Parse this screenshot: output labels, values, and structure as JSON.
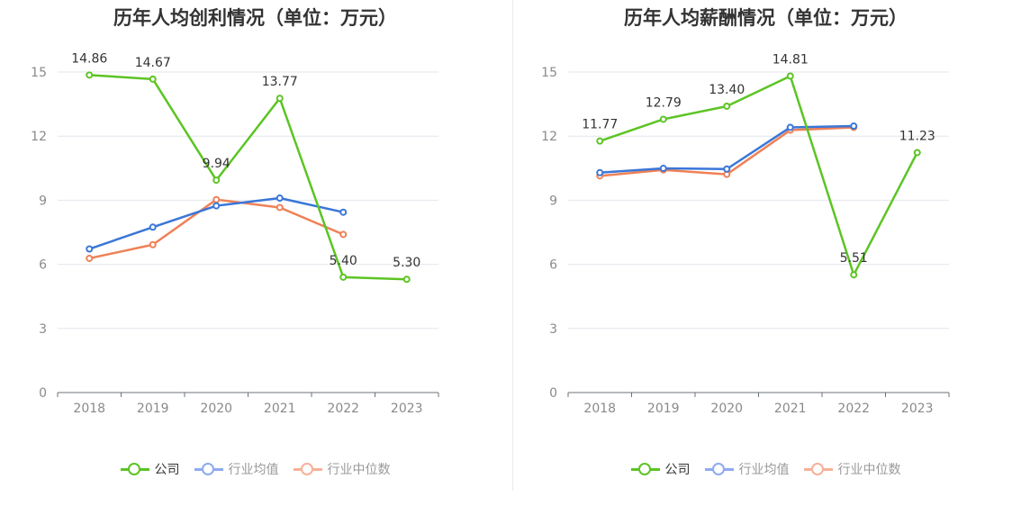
{
  "colors": {
    "company": "#5cc424",
    "avg": "#3a76d8",
    "median": "#ef8156",
    "avg_legend": "#8eaaf0",
    "median_legend": "#f5b198"
  },
  "chart_data": [
    {
      "type": "line",
      "title": "历年人均创利情况（单位：万元）",
      "categories": [
        "2018",
        "2019",
        "2020",
        "2021",
        "2022",
        "2023"
      ],
      "ylim": [
        0,
        15
      ],
      "yticks": [
        "0",
        "3",
        "6",
        "9",
        "12",
        "15"
      ],
      "grid": true,
      "legend_position": "bottom",
      "series": [
        {
          "name": "公司",
          "values": [
            14.86,
            14.67,
            9.94,
            13.77,
            5.4,
            5.3
          ],
          "labels": [
            "14.86",
            "14.67",
            "9.94",
            "13.77",
            "5.40",
            "5.30"
          ]
        },
        {
          "name": "行业均值",
          "values": [
            6.72,
            7.74,
            8.74,
            9.1,
            8.44,
            null
          ]
        },
        {
          "name": "行业中位数",
          "values": [
            6.28,
            6.92,
            9.03,
            8.66,
            7.4,
            null
          ]
        }
      ]
    },
    {
      "type": "line",
      "title": "历年人均薪酬情况（单位：万元）",
      "categories": [
        "2018",
        "2019",
        "2020",
        "2021",
        "2022",
        "2023"
      ],
      "ylim": [
        0,
        15
      ],
      "yticks": [
        "0",
        "3",
        "6",
        "9",
        "12",
        "15"
      ],
      "grid": true,
      "legend_position": "bottom",
      "series": [
        {
          "name": "公司",
          "values": [
            11.77,
            12.79,
            13.4,
            14.81,
            5.51,
            11.23
          ],
          "labels": [
            "11.77",
            "12.79",
            "13.40",
            "14.81",
            "5.51",
            "11.23"
          ]
        },
        {
          "name": "行业均值",
          "values": [
            10.29,
            10.49,
            10.46,
            12.41,
            12.47,
            null
          ]
        },
        {
          "name": "行业中位数",
          "values": [
            10.14,
            10.42,
            10.21,
            12.28,
            12.41,
            null
          ]
        }
      ]
    }
  ]
}
